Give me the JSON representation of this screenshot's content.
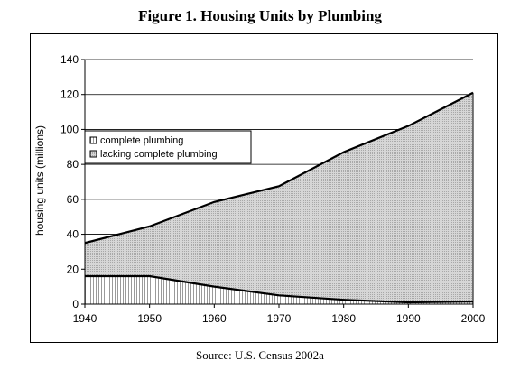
{
  "title": "Figure 1. Housing Units by Plumbing",
  "source": "Source: U.S. Census 2002a",
  "chart_data": {
    "type": "area",
    "stacked": true,
    "x": [
      1940,
      1950,
      1960,
      1970,
      1980,
      1990,
      2000
    ],
    "xlim": [
      1940,
      2000
    ],
    "ylim": [
      0,
      140
    ],
    "ylabel": "housing units (millions)",
    "xlabel": "",
    "yticks": [
      0,
      20,
      40,
      60,
      80,
      100,
      120,
      140
    ],
    "xticks": [
      1940,
      1950,
      1960,
      1970,
      1980,
      1990,
      2000
    ],
    "grid": "horizontal",
    "legend_position": "upper-left",
    "series": [
      {
        "name": "complete plumbing",
        "values": [
          16,
          16,
          10,
          5,
          2.5,
          1,
          1.5
        ],
        "fill": "#f2f2f2"
      },
      {
        "name": "lacking complete plumbing",
        "values": [
          35,
          44.5,
          58.5,
          67.5,
          87,
          102,
          121
        ],
        "fill": "#cfcfcf"
      }
    ],
    "colors": {
      "line": "#000000",
      "grid": "#000000"
    }
  }
}
